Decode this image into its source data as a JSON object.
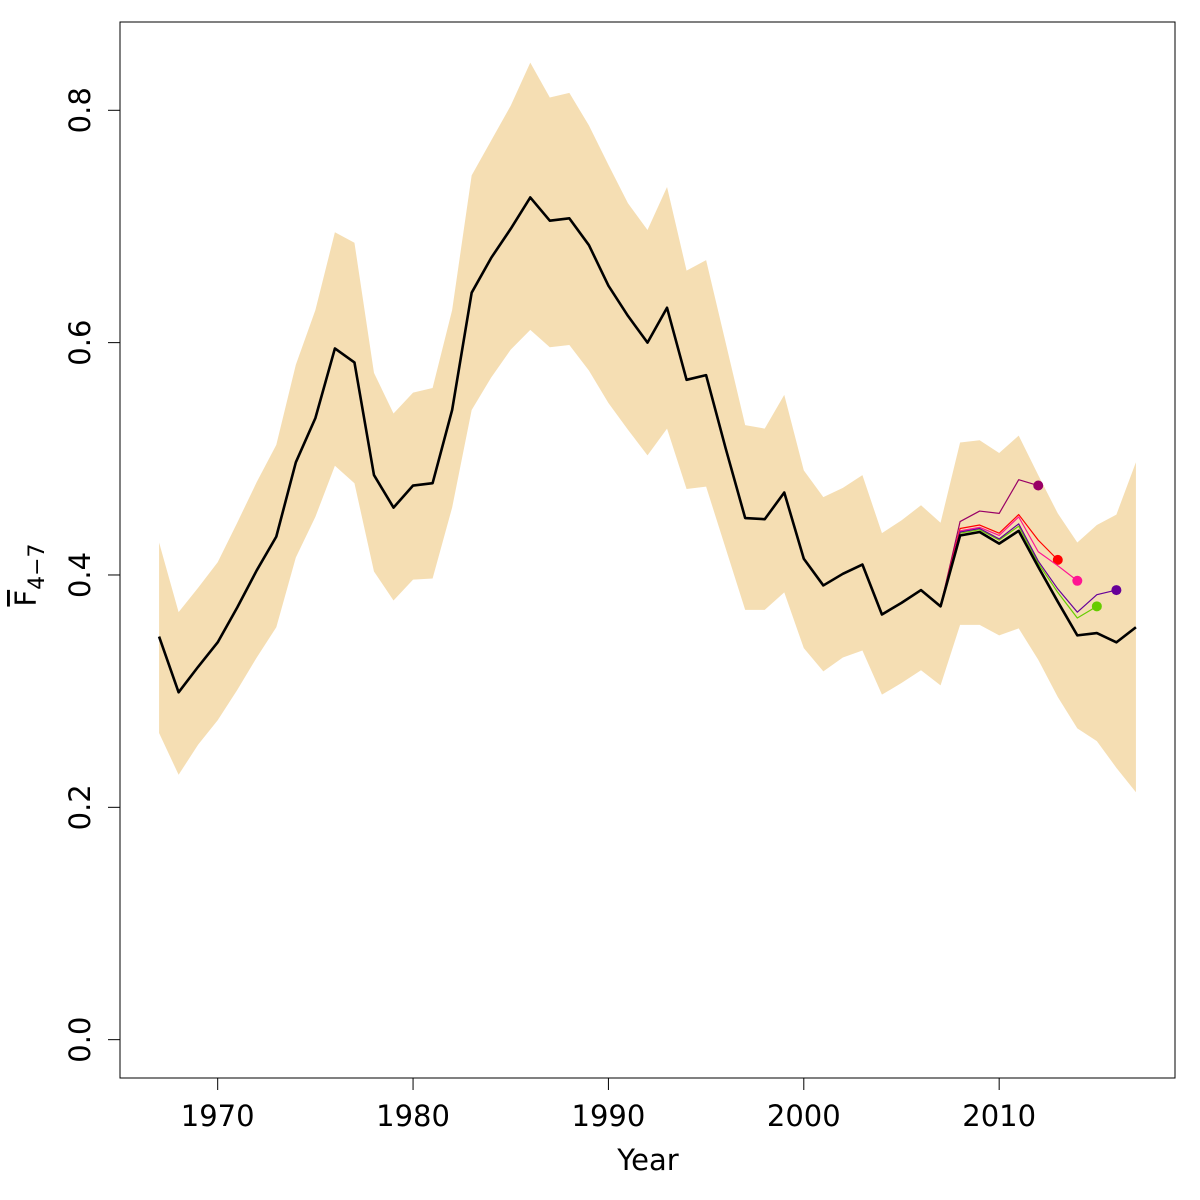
{
  "chart_data": {
    "type": "line",
    "xlabel": "Year",
    "ylabel": {
      "main": "F",
      "sub": "4−7"
    },
    "xlim": [
      1965,
      2019
    ],
    "ylim": [
      -0.033,
      0.876
    ],
    "xticks": [
      1970,
      1980,
      1990,
      2000,
      2010
    ],
    "yticks": [
      {
        "value": 0,
        "label": "0.0"
      },
      0.2,
      0.4,
      0.6,
      0.8
    ],
    "x": [
      1967,
      1968,
      1969,
      1970,
      1971,
      1972,
      1973,
      1974,
      1975,
      1976,
      1977,
      1978,
      1979,
      1980,
      1981,
      1982,
      1983,
      1984,
      1985,
      1986,
      1987,
      1988,
      1989,
      1990,
      1991,
      1992,
      1993,
      1994,
      1995,
      1996,
      1997,
      1998,
      1999,
      2000,
      2001,
      2002,
      2003,
      2004,
      2005,
      2006,
      2007,
      2008,
      2009,
      2010,
      2011,
      2012,
      2013,
      2014,
      2015,
      2016,
      2017
    ],
    "band": {
      "color": "#f5deb3",
      "upper": [
        0.428,
        0.368,
        0.389,
        0.411,
        0.445,
        0.48,
        0.512,
        0.581,
        0.628,
        0.695,
        0.686,
        0.574,
        0.539,
        0.557,
        0.561,
        0.628,
        0.744,
        0.774,
        0.804,
        0.841,
        0.811,
        0.815,
        0.787,
        0.753,
        0.72,
        0.697,
        0.734,
        0.662,
        0.671,
        0.6,
        0.529,
        0.526,
        0.555,
        0.49,
        0.467,
        0.475,
        0.486,
        0.436,
        0.447,
        0.46,
        0.445,
        0.514,
        0.516,
        0.505,
        0.52,
        0.486,
        0.453,
        0.428,
        0.443,
        0.452,
        0.497
      ],
      "lower": [
        0.264,
        0.228,
        0.254,
        0.275,
        0.301,
        0.329,
        0.355,
        0.415,
        0.45,
        0.494,
        0.479,
        0.403,
        0.378,
        0.396,
        0.397,
        0.458,
        0.542,
        0.57,
        0.594,
        0.611,
        0.596,
        0.598,
        0.576,
        0.548,
        0.525,
        0.503,
        0.526,
        0.474,
        0.476,
        0.423,
        0.37,
        0.37,
        0.385,
        0.337,
        0.317,
        0.329,
        0.335,
        0.297,
        0.307,
        0.318,
        0.305,
        0.357,
        0.357,
        0.348,
        0.354,
        0.327,
        0.295,
        0.268,
        0.257,
        0.234,
        0.213
      ]
    },
    "series": [
      {
        "color": "#990066",
        "line_width": 1.2,
        "endpoint_marker": true,
        "values": [
          null,
          null,
          null,
          null,
          null,
          null,
          null,
          null,
          null,
          null,
          null,
          null,
          null,
          null,
          null,
          null,
          null,
          null,
          null,
          null,
          null,
          null,
          null,
          null,
          null,
          null,
          null,
          null,
          null,
          null,
          null,
          null,
          null,
          null,
          null,
          null,
          null,
          null,
          null,
          null,
          0.373,
          0.446,
          0.455,
          0.453,
          0.482,
          0.477,
          null,
          null,
          null,
          null,
          null
        ]
      },
      {
        "color": "#ff0000",
        "line_width": 1.2,
        "endpoint_marker": true,
        "values": [
          null,
          null,
          null,
          null,
          null,
          null,
          null,
          null,
          null,
          null,
          null,
          null,
          null,
          null,
          null,
          null,
          null,
          null,
          null,
          null,
          null,
          null,
          null,
          null,
          null,
          null,
          null,
          null,
          null,
          null,
          null,
          null,
          null,
          null,
          null,
          null,
          null,
          null,
          null,
          null,
          0.374,
          0.44,
          0.443,
          0.436,
          0.452,
          0.43,
          0.413,
          null,
          null,
          null,
          null
        ]
      },
      {
        "color": "#ff1493",
        "line_width": 1.2,
        "endpoint_marker": true,
        "values": [
          null,
          null,
          null,
          null,
          null,
          null,
          null,
          null,
          null,
          null,
          null,
          null,
          null,
          null,
          null,
          null,
          null,
          null,
          null,
          null,
          null,
          null,
          null,
          null,
          null,
          null,
          null,
          null,
          null,
          null,
          null,
          null,
          null,
          null,
          null,
          null,
          null,
          null,
          null,
          null,
          0.374,
          0.438,
          0.441,
          0.434,
          0.45,
          0.42,
          0.408,
          0.395,
          null,
          null,
          null
        ]
      },
      {
        "color": "#66cc00",
        "line_width": 1.2,
        "endpoint_marker": true,
        "values": [
          null,
          null,
          null,
          null,
          null,
          null,
          null,
          null,
          null,
          null,
          null,
          null,
          null,
          null,
          null,
          null,
          null,
          null,
          null,
          null,
          null,
          null,
          null,
          null,
          null,
          null,
          null,
          null,
          null,
          null,
          null,
          null,
          null,
          null,
          null,
          null,
          null,
          null,
          null,
          null,
          0.373,
          0.436,
          0.439,
          0.43,
          0.442,
          0.41,
          0.385,
          0.363,
          0.373,
          null,
          null
        ]
      },
      {
        "color": "#660099",
        "line_width": 1.2,
        "endpoint_marker": true,
        "values": [
          null,
          null,
          null,
          null,
          null,
          null,
          null,
          null,
          null,
          null,
          null,
          null,
          null,
          null,
          null,
          null,
          null,
          null,
          null,
          null,
          null,
          null,
          null,
          null,
          null,
          null,
          null,
          null,
          null,
          null,
          null,
          null,
          null,
          null,
          null,
          null,
          null,
          null,
          null,
          null,
          0.373,
          0.437,
          0.44,
          0.431,
          0.444,
          0.412,
          0.388,
          0.368,
          0.383,
          0.387,
          null
        ]
      },
      {
        "color": "#000000",
        "line_width": 2.6,
        "endpoint_marker": false,
        "values": [
          0.347,
          0.299,
          0.321,
          0.342,
          0.372,
          0.404,
          0.433,
          0.497,
          0.535,
          0.595,
          0.583,
          0.486,
          0.458,
          0.477,
          0.479,
          0.542,
          0.643,
          0.673,
          0.698,
          0.725,
          0.705,
          0.707,
          0.684,
          0.649,
          0.623,
          0.6,
          0.63,
          0.568,
          0.572,
          0.509,
          0.449,
          0.448,
          0.471,
          0.414,
          0.391,
          0.401,
          0.409,
          0.366,
          0.376,
          0.387,
          0.373,
          0.434,
          0.437,
          0.427,
          0.438,
          0.407,
          0.377,
          0.348,
          0.35,
          0.342,
          0.355
        ]
      }
    ]
  }
}
